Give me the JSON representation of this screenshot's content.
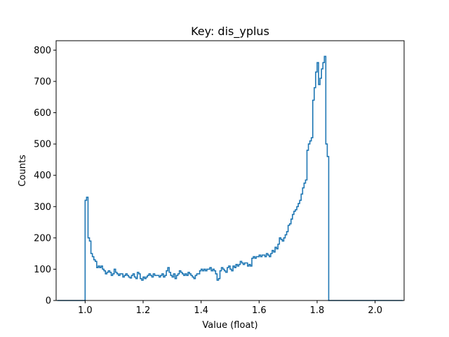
{
  "chart_data": {
    "type": "histogram",
    "title": "Key: dis_yplus",
    "xlabel": "Value (float)",
    "ylabel": "Counts",
    "xlim": [
      0.9,
      2.1
    ],
    "ylim": [
      0,
      830
    ],
    "x_ticks": [
      1.0,
      1.2,
      1.4,
      1.6,
      1.8,
      2.0
    ],
    "x_tick_labels": [
      "1.0",
      "1.2",
      "1.4",
      "1.6",
      "1.8",
      "2.0"
    ],
    "y_ticks": [
      0,
      100,
      200,
      300,
      400,
      500,
      600,
      700,
      800
    ],
    "y_tick_labels": [
      "0",
      "100",
      "200",
      "300",
      "400",
      "500",
      "600",
      "700",
      "800"
    ],
    "grid": false,
    "legend": "none",
    "series_color": "#1f77b4",
    "bin_start": 1.0,
    "bin_width": 0.005,
    "counts": [
      320,
      330,
      200,
      190,
      150,
      140,
      130,
      125,
      105,
      110,
      105,
      110,
      100,
      95,
      85,
      90,
      95,
      90,
      80,
      85,
      100,
      90,
      85,
      80,
      85,
      85,
      75,
      80,
      85,
      80,
      75,
      72,
      80,
      85,
      75,
      70,
      90,
      85,
      70,
      65,
      75,
      70,
      75,
      80,
      85,
      80,
      75,
      85,
      80,
      80,
      80,
      75,
      80,
      85,
      75,
      80,
      95,
      105,
      90,
      80,
      75,
      85,
      70,
      80,
      85,
      95,
      90,
      85,
      80,
      85,
      80,
      90,
      85,
      80,
      75,
      70,
      80,
      85,
      85,
      95,
      100,
      95,
      100,
      95,
      100,
      100,
      105,
      95,
      100,
      95,
      85,
      65,
      70,
      95,
      105,
      100,
      95,
      90,
      105,
      110,
      100,
      95,
      110,
      105,
      115,
      110,
      115,
      125,
      120,
      115,
      120,
      120,
      110,
      115,
      110,
      135,
      140,
      135,
      140,
      140,
      145,
      140,
      145,
      145,
      140,
      150,
      145,
      140,
      150,
      160,
      155,
      170,
      165,
      180,
      200,
      195,
      190,
      200,
      210,
      220,
      240,
      245,
      260,
      275,
      285,
      290,
      300,
      310,
      320,
      340,
      360,
      375,
      385,
      480,
      500,
      510,
      520,
      640,
      680,
      730,
      760,
      690,
      710,
      740,
      760,
      780,
      500,
      460
    ]
  }
}
